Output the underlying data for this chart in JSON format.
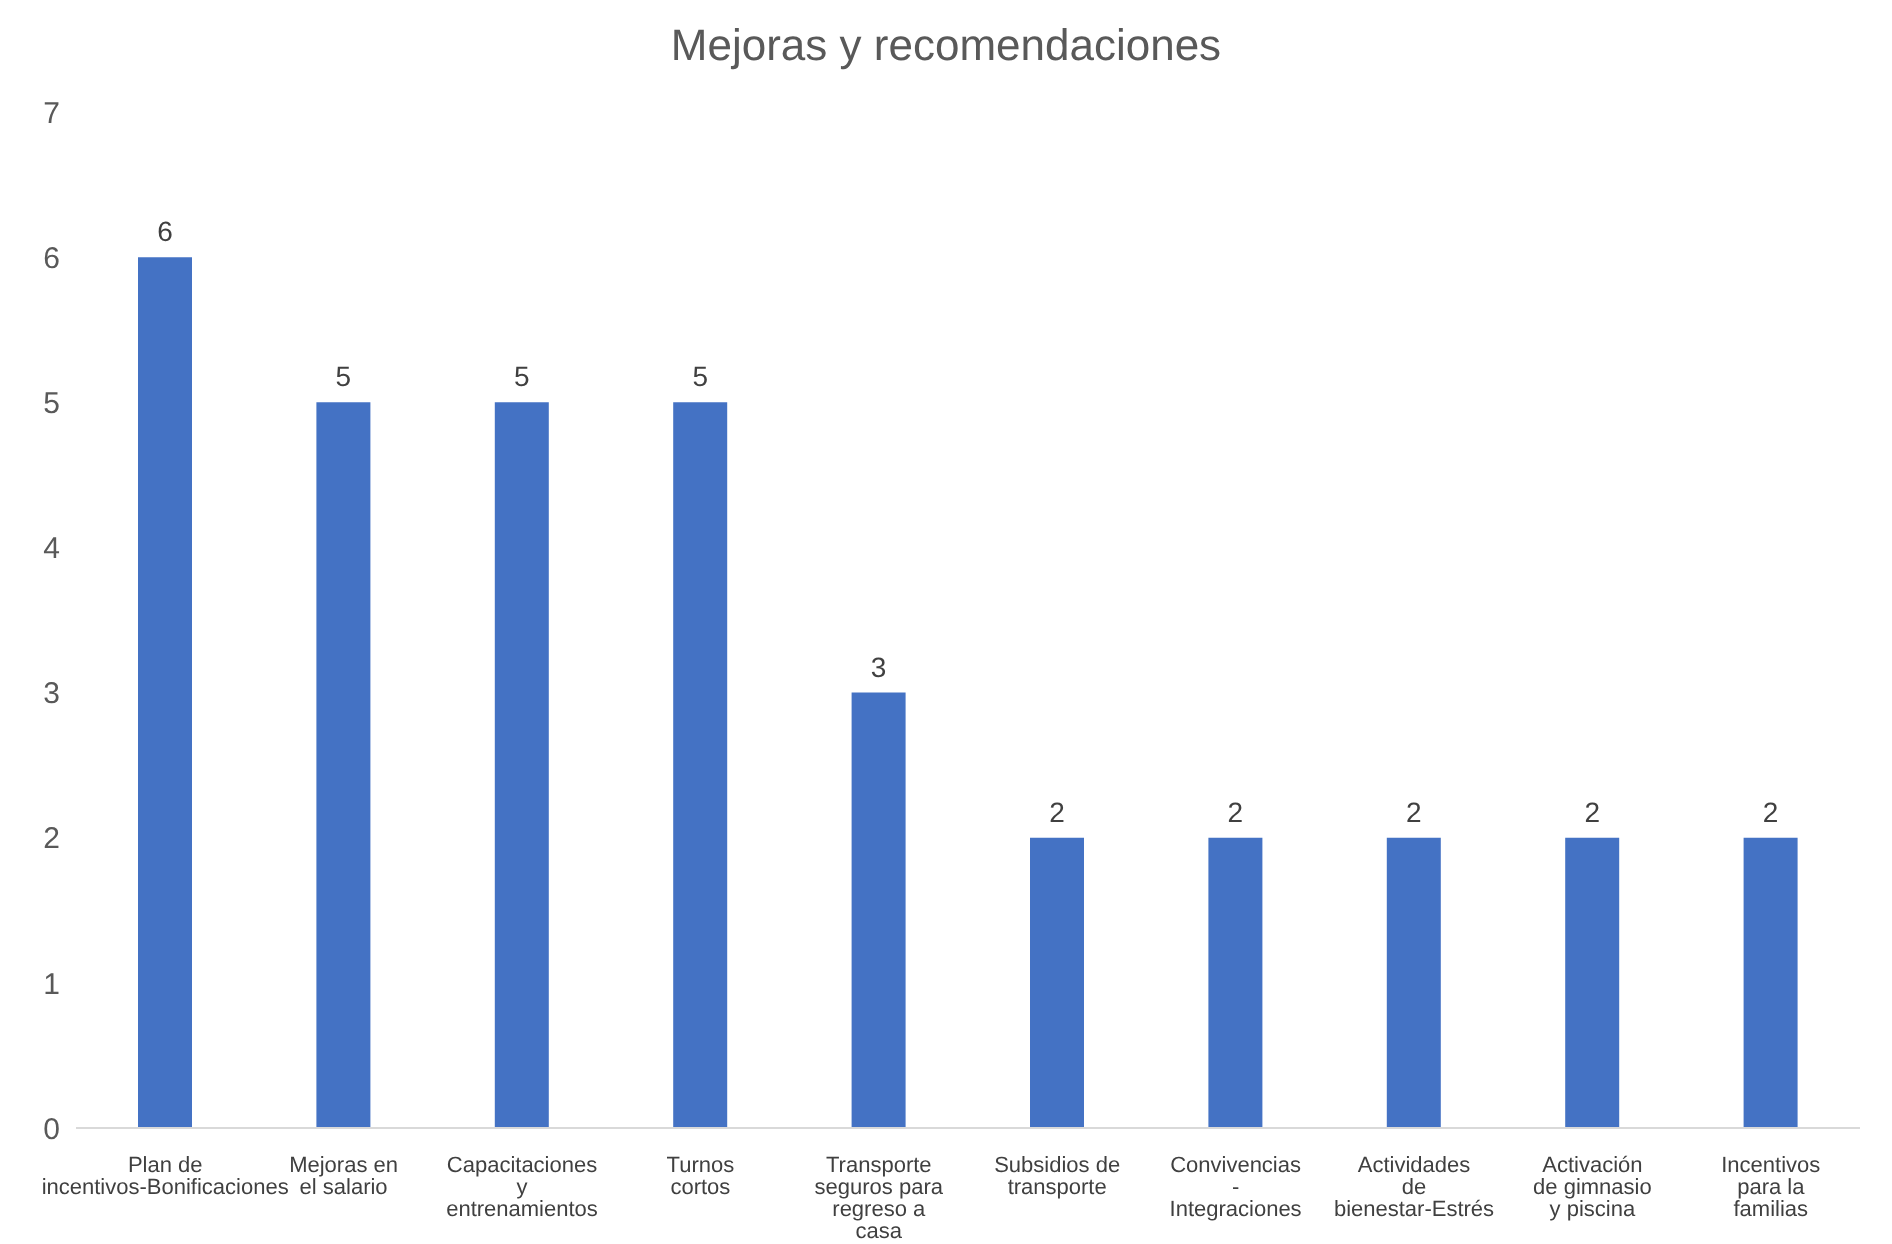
{
  "chart_data": {
    "type": "bar",
    "title": "Mejoras y recomendaciones",
    "categories": [
      "Plan de incentivos-Bonificaciones",
      "Mejoras en el salario",
      "Capacitaciones y entrenamientos",
      "Turnos cortos",
      "Transporte seguros para regreso a casa",
      "Subsidios de transporte",
      "Convivencias - Integraciones",
      "Actividades de bienestar-Estrés",
      "Activación de gimnasio y piscina",
      "Incentivos para la familias"
    ],
    "values": [
      6,
      5,
      5,
      5,
      3,
      2,
      2,
      2,
      2,
      2
    ],
    "color": "#4472c4",
    "ylim": [
      0,
      7
    ],
    "yticks": [
      0,
      1,
      2,
      3,
      4,
      5,
      6,
      7
    ],
    "grid": false,
    "legend": false,
    "data_labels": true
  }
}
